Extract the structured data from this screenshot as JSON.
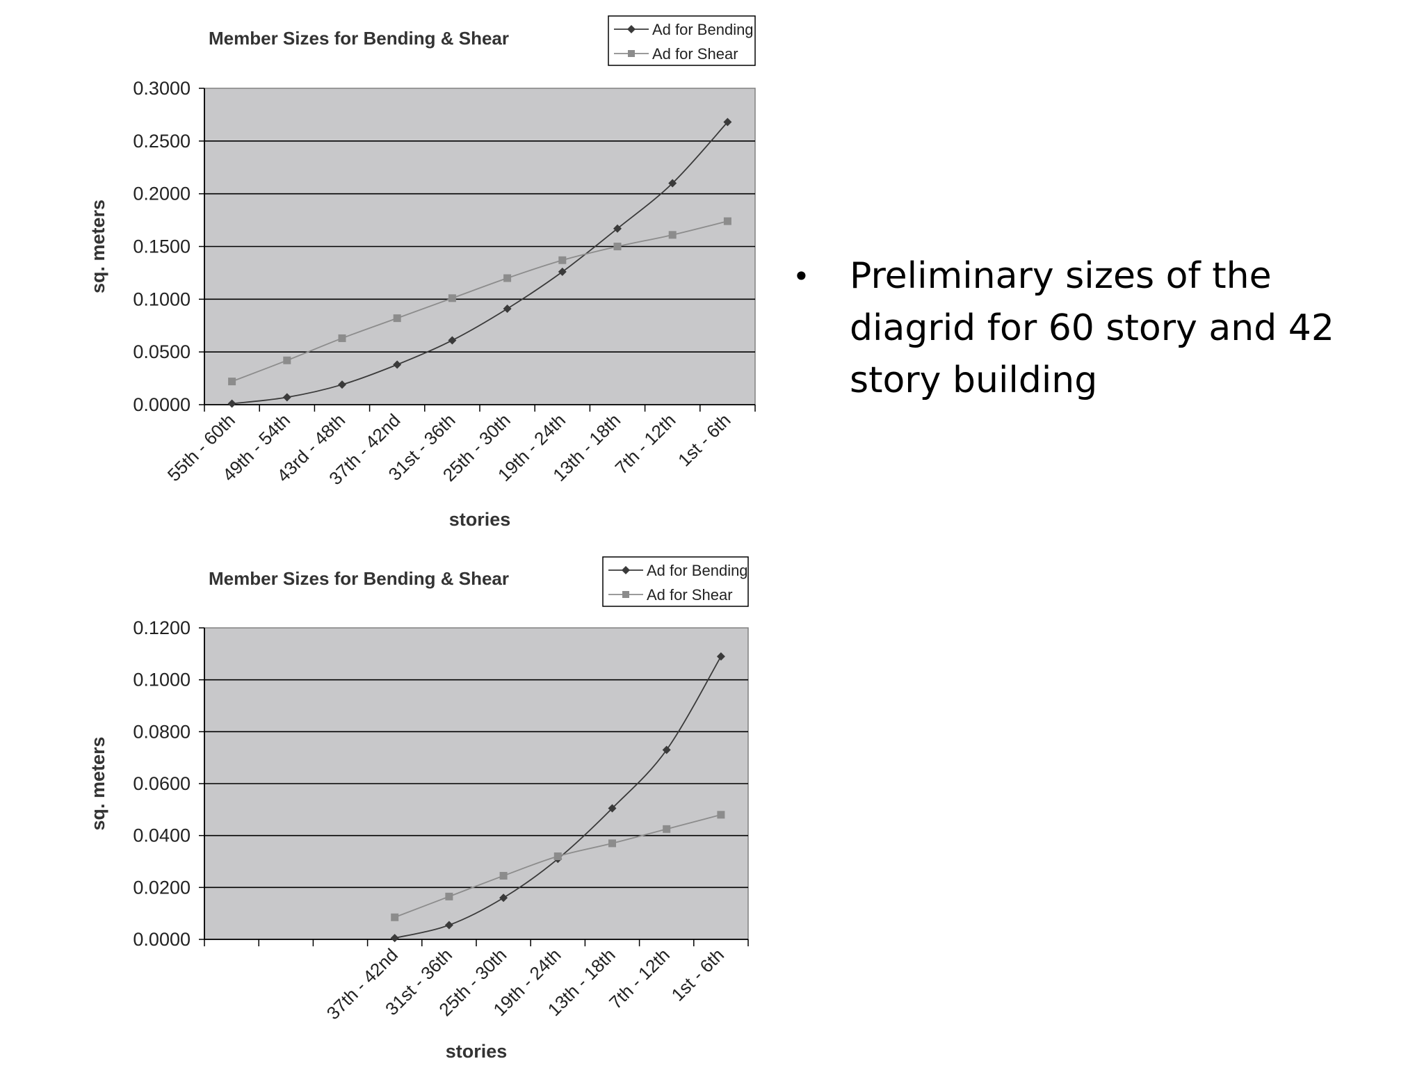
{
  "slide": {
    "bullet": "Preliminary sizes of the diagrid for 60 story and 42 story building"
  },
  "chart_data": [
    {
      "type": "line",
      "title": "Member Sizes for Bending & Shear",
      "xlabel": "stories",
      "ylabel": "sq. meters",
      "categories": [
        "55th - 60th",
        "49th - 54th",
        "43rd - 48th",
        "37th - 42nd",
        "31st - 36th",
        "25th - 30th",
        "19th - 24th",
        "13th - 18th",
        "7th - 12th",
        "1st - 6th"
      ],
      "ylim": [
        0,
        0.3
      ],
      "yticks": [
        "0.0000",
        "0.0500",
        "0.1000",
        "0.1500",
        "0.2000",
        "0.2500",
        "0.3000"
      ],
      "grid": true,
      "legend": "top-right",
      "plot_background": "#c8c8ca",
      "series": [
        {
          "name": "Ad for Bending",
          "marker": "diamond",
          "color": "#3a3a3a",
          "values": [
            0.001,
            0.007,
            0.019,
            0.038,
            0.061,
            0.091,
            0.126,
            0.167,
            0.21,
            0.268
          ]
        },
        {
          "name": "Ad for Shear",
          "marker": "square",
          "color": "#8c8c8c",
          "values": [
            0.022,
            0.042,
            0.063,
            0.082,
            0.101,
            0.12,
            0.137,
            0.15,
            0.161,
            0.174
          ]
        }
      ]
    },
    {
      "type": "line",
      "title": "Member Sizes for Bending & Shear",
      "xlabel": "stories",
      "ylabel": "sq. meters",
      "categories": [
        "",
        "",
        "",
        "37th - 42nd",
        "31st - 36th",
        "25th - 30th",
        "19th - 24th",
        "13th - 18th",
        "7th - 12th",
        "1st - 6th"
      ],
      "ylim": [
        0,
        0.12
      ],
      "yticks": [
        "0.0000",
        "0.0200",
        "0.0400",
        "0.0600",
        "0.0800",
        "0.1000",
        "0.1200"
      ],
      "grid": true,
      "legend": "top-right",
      "plot_background": "#c8c8ca",
      "series": [
        {
          "name": "Ad for Bending",
          "marker": "diamond",
          "color": "#3a3a3a",
          "values": [
            null,
            null,
            null,
            0.0005,
            0.0055,
            0.016,
            0.031,
            0.0505,
            0.073,
            0.109
          ]
        },
        {
          "name": "Ad for Shear",
          "marker": "square",
          "color": "#8c8c8c",
          "values": [
            null,
            null,
            null,
            0.0085,
            0.0165,
            0.0245,
            0.032,
            0.037,
            0.0425,
            0.048
          ]
        }
      ]
    }
  ]
}
